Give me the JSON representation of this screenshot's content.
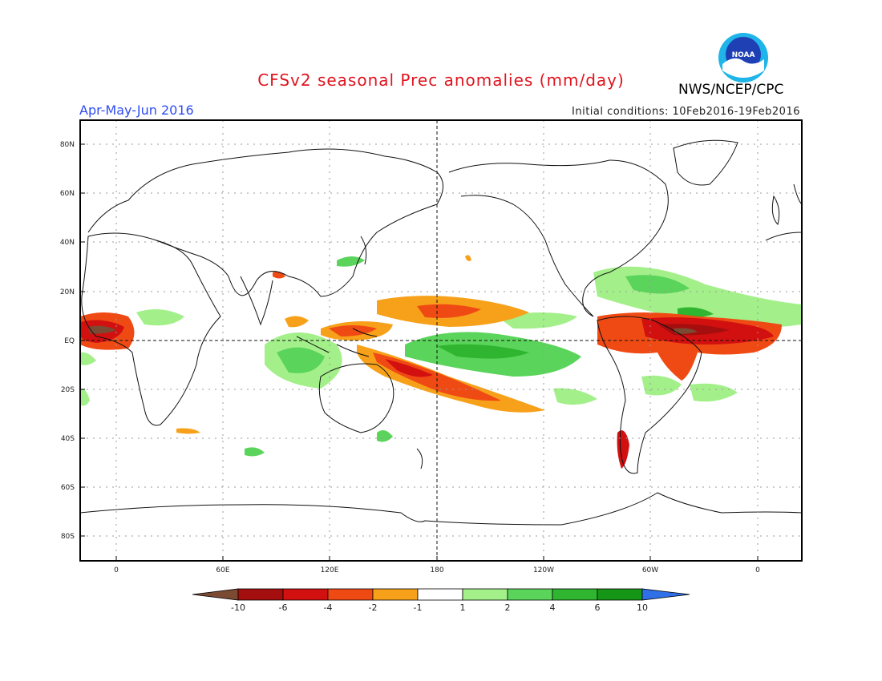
{
  "header": {
    "title": "CFSv2 seasonal Prec anomalies (mm/day)",
    "season": "Apr-May-Jun 2016",
    "initial_conditions": "Initial conditions: 10Feb2016-19Feb2016",
    "agency": "NWS/NCEP/CPC",
    "logo_text": "NOAA"
  },
  "map": {
    "lat_labels": [
      "80N",
      "60N",
      "40N",
      "20N",
      "EQ",
      "20S",
      "40S",
      "60S",
      "80S"
    ],
    "lon_labels": [
      "0",
      "60E",
      "120E",
      "180",
      "120W",
      "60W",
      "0"
    ],
    "projection": "cylindrical equidistant",
    "grid": "dotted",
    "reference_lines": "equator and dateline dashed"
  },
  "colorbar": {
    "labels": [
      "-10",
      "-6",
      "-4",
      "-2",
      "-1",
      "1",
      "2",
      "4",
      "6",
      "10"
    ],
    "colors": {
      "lt_-10": "#7a4a33",
      "-10_-6": "#a50e0e",
      "-6_-4": "#d21010",
      "-4_-2": "#f04a14",
      "-2_-1": "#f7a11a",
      "-1_1": "#ffffff",
      "1_2": "#a3f08a",
      "2_4": "#5ad45a",
      "4_6": "#2fb52f",
      "6_10": "#169616",
      "gt_10": "#2f6fe8"
    }
  }
}
